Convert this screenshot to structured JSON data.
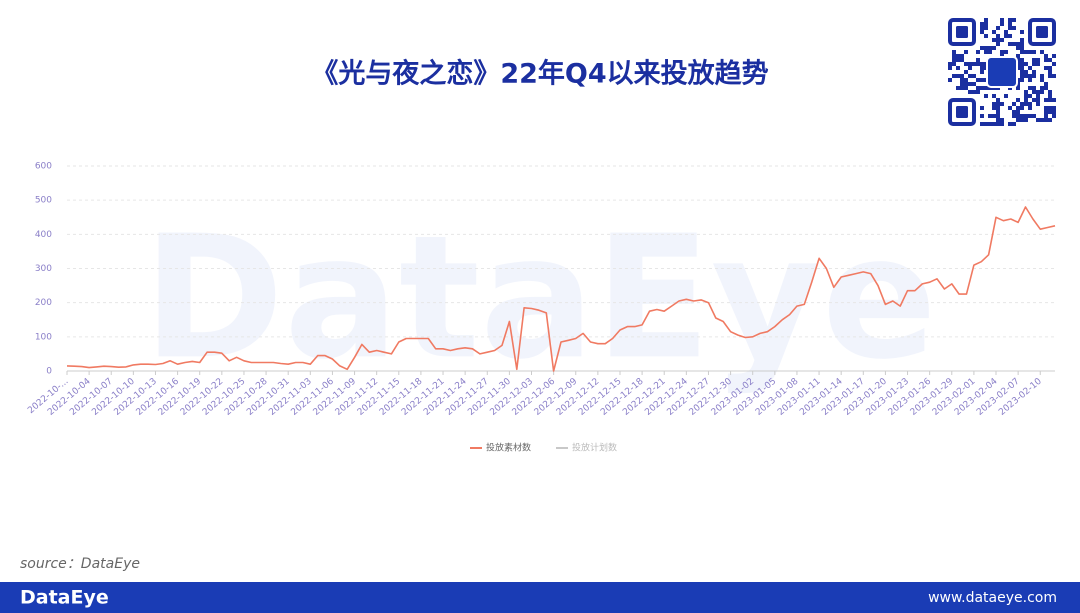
{
  "chart_data": {
    "type": "line",
    "title": "《光与夜之恋》22年Q4以来投放趋势",
    "x": [
      "2022-10-...",
      null,
      null,
      "2022-10-04",
      null,
      null,
      "2022-10-07",
      null,
      null,
      "2022-10-10",
      null,
      null,
      "2022-10-13",
      null,
      null,
      "2022-10-16",
      null,
      null,
      "2022-10-19",
      null,
      null,
      "2022-10-22",
      null,
      null,
      "2022-10-25",
      null,
      null,
      "2022-10-28",
      null,
      null,
      "2022-10-31",
      null,
      null,
      "2022-11-03",
      null,
      null,
      "2022-11-06",
      null,
      null,
      "2022-11-09",
      null,
      null,
      "2022-11-12",
      null,
      null,
      "2022-11-15",
      null,
      null,
      "2022-11-18",
      null,
      null,
      "2022-11-21",
      null,
      null,
      "2022-11-24",
      null,
      null,
      "2022-11-27",
      null,
      null,
      "2022-11-30",
      null,
      null,
      "2022-12-03",
      null,
      null,
      "2022-12-06",
      null,
      null,
      "2022-12-09",
      null,
      null,
      "2022-12-12",
      null,
      null,
      "2022-12-15",
      null,
      null,
      "2022-12-18",
      null,
      null,
      "2022-12-21",
      null,
      null,
      "2022-12-24",
      null,
      null,
      "2022-12-27",
      null,
      null,
      "2022-12-30",
      null,
      null,
      "2023-01-02",
      null,
      null,
      "2023-01-05",
      null,
      null,
      "2023-01-08",
      null,
      null,
      "2023-01-11",
      null,
      null,
      "2023-01-14",
      null,
      null,
      "2023-01-17",
      null,
      null,
      "2023-01-20",
      null,
      null,
      "2023-01-23",
      null,
      null,
      "2023-01-26",
      null,
      null,
      "2023-01-29",
      null,
      null,
      "2023-02-01",
      null,
      null,
      "2023-02-04",
      null,
      null,
      "2023-02-07",
      null,
      null,
      "2023-02-10",
      null,
      null
    ],
    "series": [
      {
        "name": "投放素材数",
        "color": "#f07a62",
        "values": [
          15,
          14,
          13,
          10,
          12,
          14,
          13,
          11,
          12,
          18,
          20,
          20,
          19,
          22,
          30,
          20,
          25,
          28,
          25,
          55,
          55,
          52,
          30,
          40,
          30,
          25,
          25,
          25,
          25,
          22,
          20,
          25,
          25,
          20,
          45,
          45,
          35,
          15,
          5,
          40,
          78,
          55,
          60,
          55,
          50,
          85,
          95,
          95,
          95,
          95,
          65,
          65,
          60,
          65,
          68,
          65,
          50,
          55,
          60,
          75,
          145,
          5,
          185,
          183,
          178,
          170,
          0,
          85,
          90,
          95,
          110,
          85,
          80,
          80,
          95,
          120,
          130,
          130,
          135,
          175,
          180,
          175,
          190,
          205,
          210,
          205,
          208,
          200,
          155,
          145,
          115,
          105,
          98,
          100,
          110,
          115,
          130,
          150,
          165,
          190,
          195,
          260,
          330,
          300,
          245,
          275,
          280,
          285,
          290,
          285,
          250,
          195,
          205,
          190,
          235,
          235,
          255,
          260,
          270,
          240,
          255,
          225,
          225,
          310,
          320,
          340,
          450,
          440,
          445,
          435,
          480,
          445,
          415,
          420,
          425
        ]
      },
      {
        "name": "投放计划数",
        "color": "#c8c8c8",
        "visible": false
      }
    ],
    "ylim": [
      0,
      600
    ],
    "yticks": [
      0,
      100,
      200,
      300,
      400,
      500,
      600
    ],
    "grid": true
  },
  "watermark": "DataEye",
  "source": "source：DataEye",
  "footer": {
    "logo": "DataEye",
    "url": "www.dataeye.com"
  }
}
